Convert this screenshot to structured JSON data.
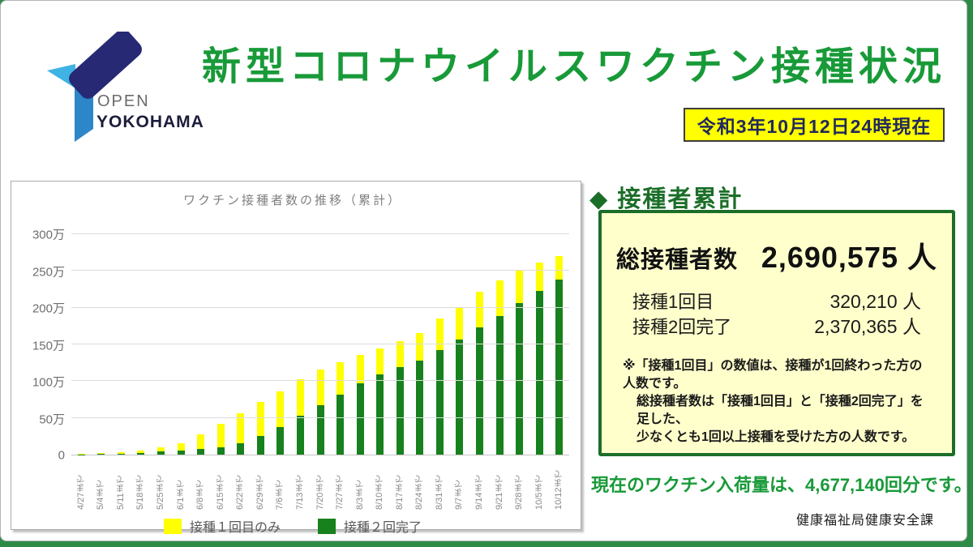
{
  "header": {
    "logo_open": "OPEN",
    "logo_yokohama": "YOKOHAMA",
    "title": "新型コロナウイルスワクチン接種状況",
    "badge_text": "令和3年10月12日24時現在"
  },
  "colors": {
    "title_green": "#189a38",
    "dark_green": "#1b6e28",
    "bar_green": "#17811d",
    "bar_yellow": "#ffff00",
    "badge_bg": "#ffff00",
    "badge_text": "#21295c",
    "box_bg": "#ffffcc",
    "frame_green": "#2e8b47"
  },
  "chart_data": {
    "type": "bar",
    "stacked": true,
    "title": "ワクチン接種者数の推移（累計）",
    "categories": [
      "4/27まで",
      "5/4まで",
      "5/11まで",
      "5/18まで",
      "5/25まで",
      "6/1まで",
      "6/8まで",
      "6/15まで",
      "6/22まで",
      "6/29まで",
      "7/6まで",
      "7/13まで",
      "7/20まで",
      "7/27まで",
      "8/3まで",
      "8/10まで",
      "8/17まで",
      "8/24まで",
      "8/31まで",
      "9/7まで",
      "9/14まで",
      "9/21まで",
      "9/28まで",
      "10/5まで",
      "10/12まで"
    ],
    "series": [
      {
        "name": "接種２回完了",
        "color": "#17811d",
        "values": [
          3000,
          8000,
          15000,
          25000,
          40000,
          55000,
          75000,
          100000,
          150000,
          250000,
          370000,
          530000,
          670000,
          810000,
          970000,
          1090000,
          1190000,
          1280000,
          1420000,
          1560000,
          1730000,
          1880000,
          2050000,
          2220000,
          2370365
        ]
      },
      {
        "name": "接種１回目のみ",
        "color": "#ffff00",
        "values": [
          12000,
          17000,
          20000,
          25000,
          60000,
          95000,
          195000,
          320000,
          410000,
          460000,
          490000,
          490000,
          480000,
          440000,
          380000,
          350000,
          350000,
          370000,
          430000,
          440000,
          480000,
          480000,
          460000,
          390000,
          320210
        ]
      }
    ],
    "ylim": [
      0,
      3000000
    ],
    "y_ticks": [
      "300万",
      "250万",
      "200万",
      "150万",
      "100万",
      "50万",
      "0"
    ],
    "y_tick_values": [
      3000000,
      2500000,
      2000000,
      1500000,
      1000000,
      500000,
      0
    ],
    "grid": true,
    "legend_position": "bottom",
    "legend": [
      {
        "label": "接種１回目のみ",
        "color": "#ffff00"
      },
      {
        "label": "接種２回完了",
        "color": "#17811d"
      }
    ]
  },
  "summary": {
    "heading_diamond": "◆",
    "heading": "接種者累計",
    "total_label": "総接種者数",
    "total_value": "2,690,575 人",
    "rows": [
      {
        "label": "接種1回目",
        "value": "320,210 人"
      },
      {
        "label": "接種2回完了",
        "value": "2,370,365 人"
      }
    ],
    "note_lines": [
      "※「接種1回目」の数値は、接種が1回終わった方の人数です。",
      "総接種者数は「接種1回目」と「接種2回完了」を足した、",
      "少なくとも1回以上接種を受けた方の人数です。"
    ]
  },
  "footer": {
    "supply_text": "現在のワクチン入荷量は、4,677,140回分です。",
    "department": "健康福祉局健康安全課"
  }
}
